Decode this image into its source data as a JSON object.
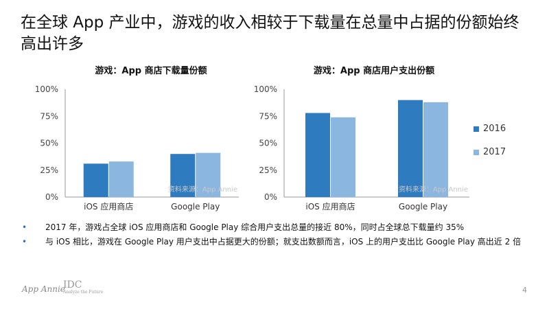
{
  "slide": {
    "title": "在全球 App 产业中，游戏的收入相较于下载量在总量中占据的份额始终高出许多",
    "bullets": [
      "2017 年，游戏占全球 iOS 应用商店和 Google Play 综合用户支出总量的接近 80%，同时占全球总下载量约 35%",
      "与 iOS 相比，游戏在 Google Play 用户支出中占据更大的份额；就支出数额而言，iOS 上的用户支出比 Google Play 高出近 2 倍"
    ],
    "footer": {
      "logo_text": "App Annie",
      "logo2_text": "IDC",
      "logo2_tagline": "Analyze the Future"
    },
    "page_number": "4"
  },
  "legend": [
    {
      "label": "2016",
      "color": "#2f7bbf"
    },
    {
      "label": "2017",
      "color": "#8ab6df"
    }
  ],
  "chart_data": [
    {
      "type": "bar",
      "title": "游戏：App 商店下载量份额",
      "categories": [
        "iOS 应用商店",
        "Google Play"
      ],
      "series": [
        {
          "name": "2016",
          "values": [
            31,
            40
          ]
        },
        {
          "name": "2017",
          "values": [
            33,
            41
          ]
        }
      ],
      "ylim": [
        0,
        100
      ],
      "yticks": [
        "0%",
        "25%",
        "50%",
        "75%",
        "100%"
      ],
      "source": "资料来源：App Annie",
      "grid": false
    },
    {
      "type": "bar",
      "title": "游戏：App 商店用户支出份额",
      "categories": [
        "iOS 应用商店",
        "Google Play"
      ],
      "series": [
        {
          "name": "2016",
          "values": [
            78,
            90
          ]
        },
        {
          "name": "2017",
          "values": [
            74,
            88
          ]
        }
      ],
      "ylim": [
        0,
        100
      ],
      "yticks": [
        "0%",
        "25%",
        "50%",
        "75%",
        "100%"
      ],
      "source": "资料来源：App Annie",
      "grid": false
    }
  ]
}
